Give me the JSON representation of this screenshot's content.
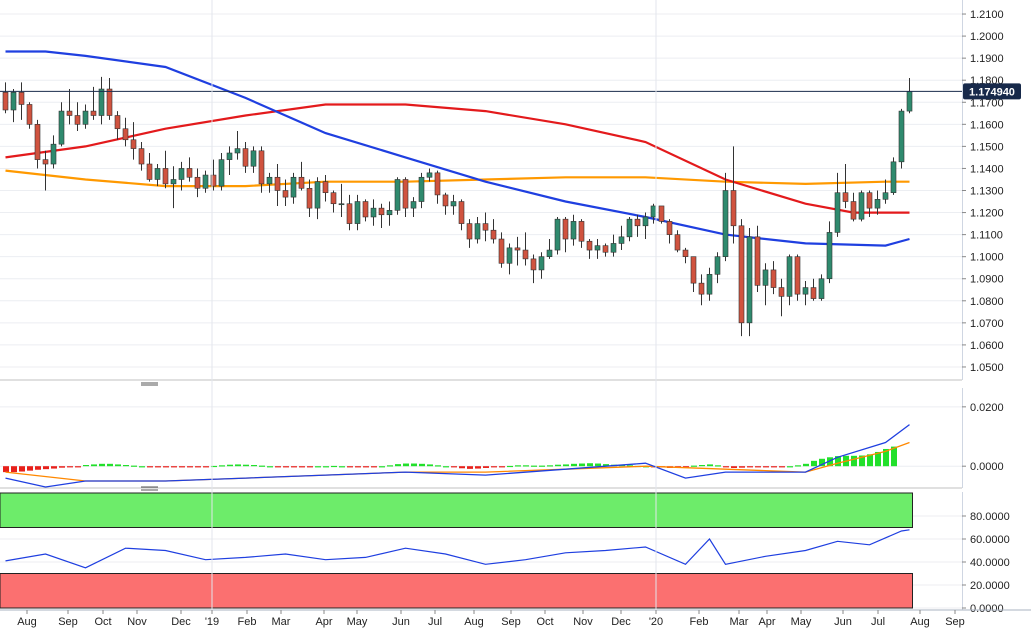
{
  "chart_data": [
    {
      "type": "candlestick",
      "panel": "price",
      "ylim": [
        1.045,
        1.215
      ],
      "y_ticks": [
        "1.2100",
        "1.2000",
        "1.1900",
        "1.1800",
        "1.1700",
        "1.1600",
        "1.1500",
        "1.1400",
        "1.1300",
        "1.1200",
        "1.1100",
        "1.1000",
        "1.0900",
        "1.0800",
        "1.0700",
        "1.0600",
        "1.0500"
      ],
      "y_tick_values": [
        1.21,
        1.2,
        1.19,
        1.18,
        1.17,
        1.16,
        1.15,
        1.14,
        1.13,
        1.12,
        1.11,
        1.1,
        1.09,
        1.08,
        1.07,
        1.06,
        1.05
      ],
      "x_labels": [
        "Aug",
        "Sep",
        "Oct",
        "Nov",
        "Dec",
        "'19",
        "Feb",
        "Mar",
        "Apr",
        "May",
        "Jun",
        "Jul",
        "Aug",
        "Sep",
        "Oct",
        "Nov",
        "Dec",
        "'20",
        "Feb",
        "Mar",
        "Apr",
        "May",
        "Jun",
        "Jul",
        "Aug",
        "Sep"
      ],
      "candles": [
        [
          1.1745,
          1.179,
          1.165,
          1.1665
        ],
        [
          1.1665,
          1.176,
          1.161,
          1.1745
        ],
        [
          1.1745,
          1.179,
          1.162,
          1.169
        ],
        [
          1.169,
          1.17,
          1.158,
          1.16
        ],
        [
          1.16,
          1.162,
          1.14,
          1.144
        ],
        [
          1.144,
          1.148,
          1.13,
          1.142
        ],
        [
          1.142,
          1.155,
          1.14,
          1.151
        ],
        [
          1.151,
          1.17,
          1.15,
          1.166
        ],
        [
          1.166,
          1.176,
          1.16,
          1.164
        ],
        [
          1.164,
          1.17,
          1.157,
          1.16
        ],
        [
          1.16,
          1.169,
          1.158,
          1.166
        ],
        [
          1.166,
          1.177,
          1.162,
          1.164
        ],
        [
          1.164,
          1.1815,
          1.16,
          1.176
        ],
        [
          1.176,
          1.181,
          1.162,
          1.164
        ],
        [
          1.164,
          1.166,
          1.153,
          1.158
        ],
        [
          1.158,
          1.163,
          1.15,
          1.153
        ],
        [
          1.153,
          1.161,
          1.144,
          1.149
        ],
        [
          1.149,
          1.152,
          1.139,
          1.142
        ],
        [
          1.142,
          1.147,
          1.134,
          1.135
        ],
        [
          1.135,
          1.142,
          1.132,
          1.14
        ],
        [
          1.14,
          1.148,
          1.131,
          1.133
        ],
        [
          1.133,
          1.141,
          1.122,
          1.135
        ],
        [
          1.135,
          1.143,
          1.13,
          1.14
        ],
        [
          1.14,
          1.145,
          1.134,
          1.136
        ],
        [
          1.136,
          1.14,
          1.127,
          1.131
        ],
        [
          1.131,
          1.139,
          1.129,
          1.137
        ],
        [
          1.137,
          1.144,
          1.13,
          1.132
        ],
        [
          1.132,
          1.147,
          1.13,
          1.144
        ],
        [
          1.144,
          1.15,
          1.137,
          1.147
        ],
        [
          1.147,
          1.157,
          1.144,
          1.149
        ],
        [
          1.149,
          1.152,
          1.138,
          1.141
        ],
        [
          1.141,
          1.15,
          1.138,
          1.148
        ],
        [
          1.148,
          1.15,
          1.129,
          1.133
        ],
        [
          1.133,
          1.138,
          1.129,
          1.136
        ],
        [
          1.136,
          1.142,
          1.123,
          1.13
        ],
        [
          1.13,
          1.135,
          1.123,
          1.127
        ],
        [
          1.127,
          1.138,
          1.124,
          1.136
        ],
        [
          1.136,
          1.143,
          1.13,
          1.131
        ],
        [
          1.131,
          1.135,
          1.118,
          1.122
        ],
        [
          1.122,
          1.136,
          1.117,
          1.134
        ],
        [
          1.134,
          1.137,
          1.125,
          1.129
        ],
        [
          1.129,
          1.13,
          1.12,
          1.124
        ],
        [
          1.124,
          1.133,
          1.118,
          1.124
        ],
        [
          1.124,
          1.128,
          1.112,
          1.115
        ],
        [
          1.115,
          1.128,
          1.112,
          1.125
        ],
        [
          1.125,
          1.126,
          1.116,
          1.118
        ],
        [
          1.118,
          1.126,
          1.114,
          1.122
        ],
        [
          1.122,
          1.124,
          1.113,
          1.119
        ],
        [
          1.119,
          1.125,
          1.114,
          1.121
        ],
        [
          1.121,
          1.136,
          1.119,
          1.135
        ],
        [
          1.135,
          1.136,
          1.118,
          1.122
        ],
        [
          1.122,
          1.127,
          1.118,
          1.125
        ],
        [
          1.125,
          1.138,
          1.122,
          1.136
        ],
        [
          1.136,
          1.14,
          1.134,
          1.138
        ],
        [
          1.138,
          1.139,
          1.124,
          1.128
        ],
        [
          1.128,
          1.129,
          1.119,
          1.123
        ],
        [
          1.123,
          1.128,
          1.119,
          1.125
        ],
        [
          1.125,
          1.126,
          1.112,
          1.115
        ],
        [
          1.115,
          1.117,
          1.104,
          1.108
        ],
        [
          1.108,
          1.118,
          1.106,
          1.115
        ],
        [
          1.115,
          1.12,
          1.107,
          1.112
        ],
        [
          1.112,
          1.117,
          1.106,
          1.108
        ],
        [
          1.108,
          1.111,
          1.095,
          1.097
        ],
        [
          1.097,
          1.106,
          1.092,
          1.104
        ],
        [
          1.104,
          1.109,
          1.096,
          1.103
        ],
        [
          1.103,
          1.111,
          1.096,
          1.099
        ],
        [
          1.099,
          1.101,
          1.088,
          1.094
        ],
        [
          1.094,
          1.102,
          1.09,
          1.1
        ],
        [
          1.1,
          1.108,
          1.099,
          1.103
        ],
        [
          1.103,
          1.118,
          1.101,
          1.117
        ],
        [
          1.117,
          1.118,
          1.102,
          1.108
        ],
        [
          1.108,
          1.119,
          1.105,
          1.116
        ],
        [
          1.116,
          1.117,
          1.104,
          1.107
        ],
        [
          1.107,
          1.108,
          1.099,
          1.103
        ],
        [
          1.103,
          1.108,
          1.099,
          1.105
        ],
        [
          1.105,
          1.106,
          1.1,
          1.102
        ],
        [
          1.102,
          1.11,
          1.1,
          1.106
        ],
        [
          1.106,
          1.114,
          1.103,
          1.109
        ],
        [
          1.109,
          1.118,
          1.107,
          1.117
        ],
        [
          1.117,
          1.119,
          1.109,
          1.114
        ],
        [
          1.114,
          1.12,
          1.108,
          1.118
        ],
        [
          1.118,
          1.124,
          1.115,
          1.123
        ],
        [
          1.123,
          1.123,
          1.115,
          1.116
        ],
        [
          1.116,
          1.117,
          1.106,
          1.11
        ],
        [
          1.11,
          1.112,
          1.102,
          1.103
        ],
        [
          1.103,
          1.104,
          1.097,
          1.1
        ],
        [
          1.1,
          1.1,
          1.084,
          1.088
        ],
        [
          1.088,
          1.092,
          1.078,
          1.083
        ],
        [
          1.083,
          1.095,
          1.08,
          1.092
        ],
        [
          1.092,
          1.102,
          1.088,
          1.1
        ],
        [
          1.1,
          1.138,
          1.098,
          1.13
        ],
        [
          1.13,
          1.15,
          1.106,
          1.114
        ],
        [
          1.114,
          1.117,
          1.064,
          1.07
        ],
        [
          1.07,
          1.113,
          1.064,
          1.109
        ],
        [
          1.109,
          1.114,
          1.084,
          1.087
        ],
        [
          1.087,
          1.097,
          1.078,
          1.094
        ],
        [
          1.094,
          1.098,
          1.083,
          1.086
        ],
        [
          1.086,
          1.09,
          1.073,
          1.082
        ],
        [
          1.082,
          1.101,
          1.078,
          1.1
        ],
        [
          1.1,
          1.101,
          1.08,
          1.083
        ],
        [
          1.083,
          1.089,
          1.078,
          1.086
        ],
        [
          1.086,
          1.09,
          1.08,
          1.081
        ],
        [
          1.081,
          1.092,
          1.08,
          1.09
        ],
        [
          1.09,
          1.116,
          1.088,
          1.111
        ],
        [
          1.111,
          1.138,
          1.109,
          1.129
        ],
        [
          1.129,
          1.142,
          1.122,
          1.125
        ],
        [
          1.125,
          1.129,
          1.116,
          1.117
        ],
        [
          1.117,
          1.13,
          1.116,
          1.129
        ],
        [
          1.129,
          1.13,
          1.118,
          1.122
        ],
        [
          1.122,
          1.13,
          1.119,
          1.126
        ],
        [
          1.126,
          1.135,
          1.124,
          1.129
        ],
        [
          1.129,
          1.145,
          1.128,
          1.143
        ],
        [
          1.143,
          1.167,
          1.14,
          1.166
        ],
        [
          1.166,
          1.181,
          1.165,
          1.1749
        ]
      ],
      "moving_averages": [
        {
          "color": "#ff9900",
          "points": [
            [
              0,
              1.139
            ],
            [
              10,
              1.135
            ],
            [
              20,
              1.132
            ],
            [
              30,
              1.132
            ],
            [
              40,
              1.134
            ],
            [
              50,
              1.134
            ],
            [
              60,
              1.135
            ],
            [
              70,
              1.136
            ],
            [
              80,
              1.136
            ],
            [
              90,
              1.134
            ],
            [
              100,
              1.133
            ],
            [
              110,
              1.134
            ],
            [
              113,
              1.134
            ]
          ]
        },
        {
          "color": "#e31a1c",
          "points": [
            [
              0,
              1.145
            ],
            [
              10,
              1.15
            ],
            [
              20,
              1.158
            ],
            [
              30,
              1.164
            ],
            [
              40,
              1.169
            ],
            [
              50,
              1.169
            ],
            [
              60,
              1.166
            ],
            [
              70,
              1.16
            ],
            [
              80,
              1.152
            ],
            [
              90,
              1.135
            ],
            [
              100,
              1.124
            ],
            [
              106,
              1.12
            ],
            [
              113,
              1.12
            ]
          ]
        },
        {
          "color": "#1f3fe0",
          "points": [
            [
              0,
              1.193
            ],
            [
              5,
              1.193
            ],
            [
              10,
              1.191
            ],
            [
              20,
              1.186
            ],
            [
              30,
              1.172
            ],
            [
              40,
              1.156
            ],
            [
              50,
              1.145
            ],
            [
              60,
              1.134
            ],
            [
              70,
              1.125
            ],
            [
              80,
              1.118
            ],
            [
              90,
              1.11
            ],
            [
              100,
              1.106
            ],
            [
              110,
              1.105
            ],
            [
              113,
              1.108
            ]
          ]
        }
      ],
      "last_price_label": "1.174940",
      "last_price": 1.17494
    },
    {
      "type": "bar",
      "panel": "oscillator",
      "ylim": [
        -0.006,
        0.025
      ],
      "y_ticks": [
        "0.0200",
        "0.0000"
      ],
      "y_tick_values": [
        0.02,
        0.0
      ],
      "histogram": [
        -0.002,
        -0.002,
        -0.0018,
        -0.0015,
        -0.0012,
        -0.001,
        -0.0008,
        -0.0005,
        -0.0003,
        -0.0001,
        0.0004,
        0.0006,
        0.0008,
        0.0008,
        0.0006,
        0.0004,
        0.0002,
        0.0,
        -0.0002,
        -0.0003,
        -0.0004,
        -0.0004,
        -0.0003,
        -0.0002,
        -0.0002,
        -0.0001,
        0.0001,
        0.0003,
        0.0005,
        0.0006,
        0.0005,
        0.0004,
        0.0002,
        0.0,
        -0.0001,
        -0.0001,
        -0.0002,
        -0.0002,
        -0.0001,
        0.0,
        0.0,
        0.0001,
        0.0,
        -0.0001,
        -0.0002,
        -0.0002,
        -0.0001,
        0.0,
        0.0003,
        0.0007,
        0.0009,
        0.0009,
        0.0008,
        0.0006,
        0.0003,
        0.0,
        -0.0004,
        -0.0007,
        -0.0009,
        -0.0008,
        -0.0006,
        -0.0004,
        -0.0002,
        0.0001,
        0.0003,
        0.0003,
        0.0002,
        0.0002,
        0.0003,
        0.0005,
        0.0006,
        0.0008,
        0.0009,
        0.001,
        0.0009,
        0.0007,
        0.0005,
        0.0004,
        0.0003,
        0.0001,
        0.0,
        -0.0002,
        -0.0004,
        -0.0006,
        -0.0004,
        -0.0002,
        0.0002,
        0.0004,
        0.0006,
        0.0003,
        -0.0002,
        -0.0006,
        -0.0005,
        -0.0004,
        -0.0003,
        -0.0002,
        -0.0002,
        -0.0001,
        0.0,
        0.0003,
        0.0008,
        0.0018,
        0.0025,
        0.003,
        0.0034,
        0.0035,
        0.0035,
        0.0036,
        0.004,
        0.0048,
        0.0058,
        0.0066
      ],
      "macd_line": [
        [
          0,
          -0.004
        ],
        [
          5,
          -0.007
        ],
        [
          10,
          -0.005
        ],
        [
          20,
          -0.005
        ],
        [
          30,
          -0.004
        ],
        [
          40,
          -0.003
        ],
        [
          50,
          -0.002
        ],
        [
          60,
          -0.003
        ],
        [
          70,
          -0.001
        ],
        [
          80,
          0.001
        ],
        [
          85,
          -0.004
        ],
        [
          90,
          -0.002
        ],
        [
          100,
          -0.002
        ],
        [
          104,
          0.003
        ],
        [
          110,
          0.008
        ],
        [
          113,
          0.014
        ]
      ],
      "signal_line": [
        [
          0,
          -0.002
        ],
        [
          10,
          -0.005
        ],
        [
          20,
          -0.005
        ],
        [
          30,
          -0.004
        ],
        [
          40,
          -0.003
        ],
        [
          50,
          -0.002
        ],
        [
          60,
          -0.002
        ],
        [
          70,
          -0.001
        ],
        [
          80,
          0.0
        ],
        [
          90,
          -0.001
        ],
        [
          100,
          -0.002
        ],
        [
          104,
          0.001
        ],
        [
          110,
          0.005
        ],
        [
          113,
          0.008
        ]
      ]
    },
    {
      "type": "line",
      "panel": "rsi",
      "ylim": [
        0,
        100
      ],
      "y_ticks": [
        "80.0000",
        "60.0000",
        "40.0000",
        "20.0000",
        "0.0000"
      ],
      "y_tick_values": [
        80,
        60,
        40,
        20,
        0
      ],
      "overbought": 70,
      "oversold": 30,
      "values": [
        [
          0,
          41
        ],
        [
          5,
          47
        ],
        [
          10,
          35
        ],
        [
          15,
          52
        ],
        [
          20,
          50
        ],
        [
          25,
          42
        ],
        [
          30,
          44
        ],
        [
          35,
          47
        ],
        [
          40,
          42
        ],
        [
          45,
          44
        ],
        [
          50,
          52
        ],
        [
          55,
          47
        ],
        [
          60,
          38
        ],
        [
          65,
          42
        ],
        [
          70,
          48
        ],
        [
          75,
          50
        ],
        [
          80,
          53
        ],
        [
          85,
          38
        ],
        [
          88,
          60
        ],
        [
          90,
          38
        ],
        [
          95,
          45
        ],
        [
          100,
          50
        ],
        [
          104,
          58
        ],
        [
          108,
          55
        ],
        [
          112,
          67
        ],
        [
          113,
          68
        ]
      ]
    }
  ]
}
